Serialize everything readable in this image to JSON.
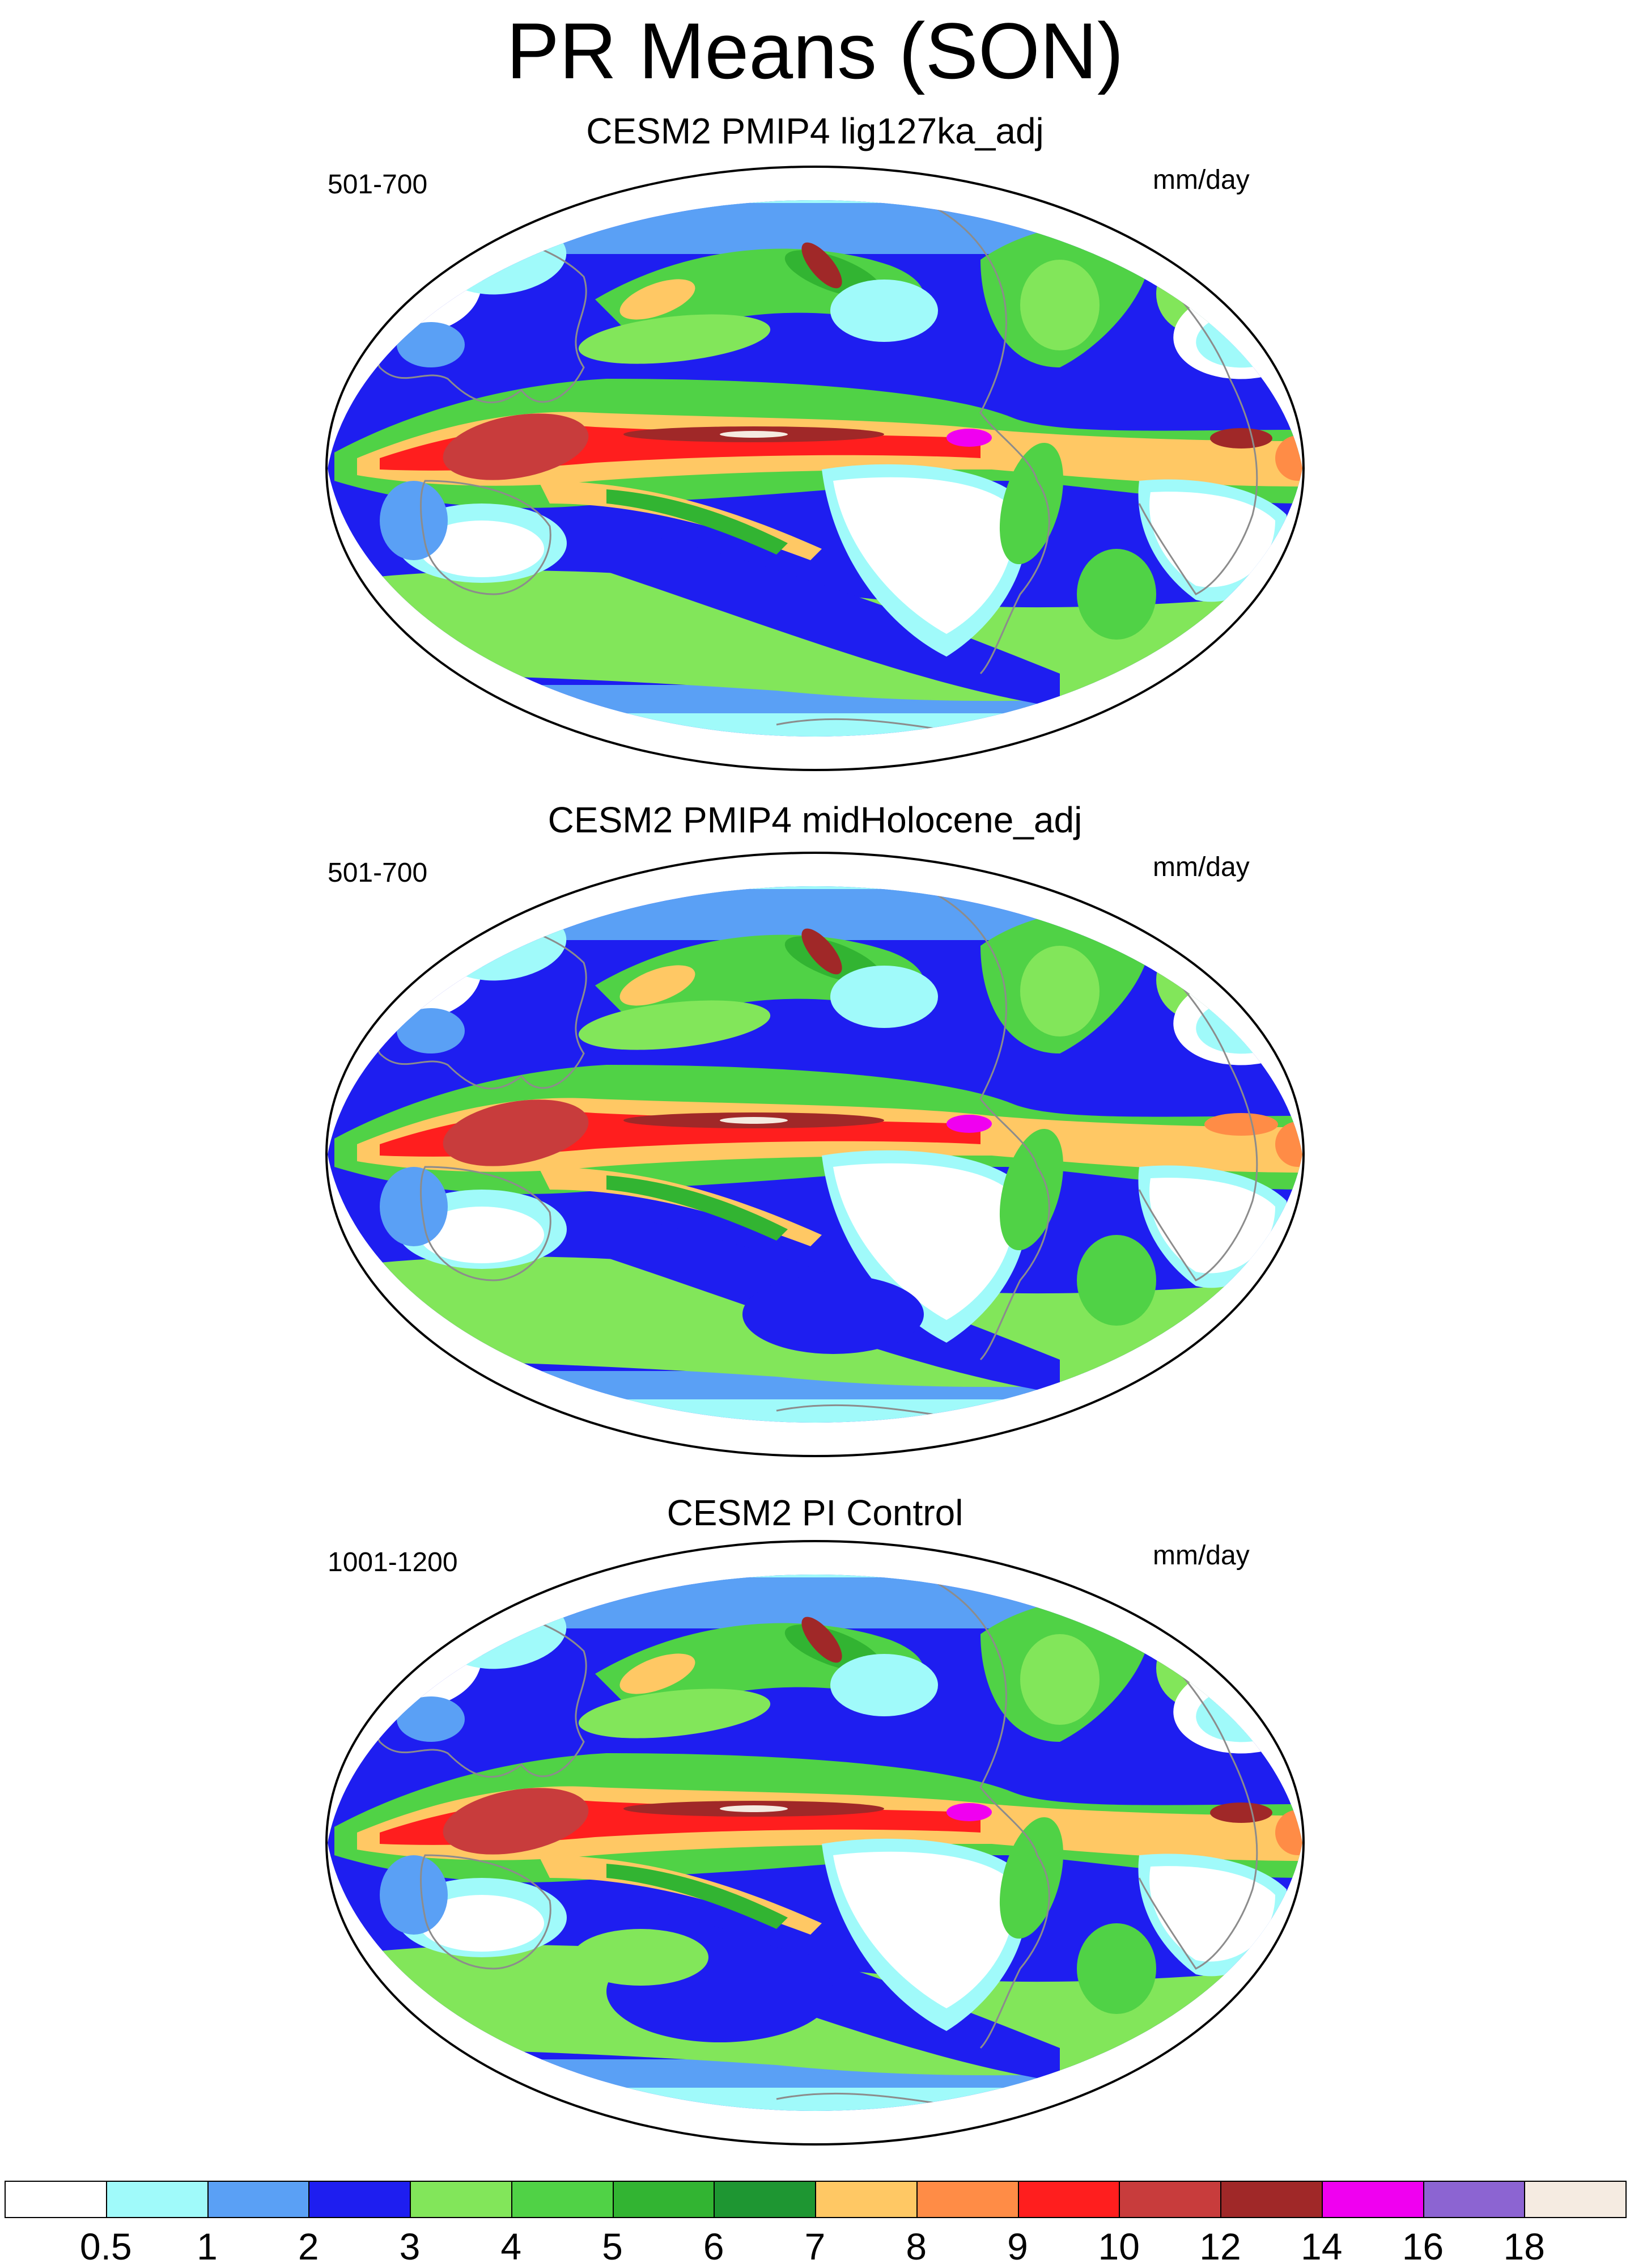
{
  "title": "PR Means (SON)",
  "panels": [
    {
      "title": "CESM2 PMIP4 lig127ka_adj",
      "years": "501-700",
      "units": "mm/day"
    },
    {
      "title": "CESM2 PMIP4 midHolocene_adj",
      "years": "501-700",
      "units": "mm/day"
    },
    {
      "title": "CESM2 PI Control",
      "years": "1001-1200",
      "units": "mm/day"
    }
  ],
  "colorbar": {
    "labels": [
      "0.5",
      "1",
      "2",
      "3",
      "4",
      "5",
      "6",
      "7",
      "8",
      "9",
      "10",
      "12",
      "14",
      "16",
      "18"
    ],
    "colors": [
      "#ffffff",
      "#a0fafa",
      "#5aa0f5",
      "#1e1ef0",
      "#82e65a",
      "#50d246",
      "#32b432",
      "#1e9632",
      "#ffc864",
      "#ff8c46",
      "#ff1e1e",
      "#c83c3c",
      "#a02828",
      "#f000f0",
      "#8c64d2",
      "#f5ebe1"
    ]
  }
}
